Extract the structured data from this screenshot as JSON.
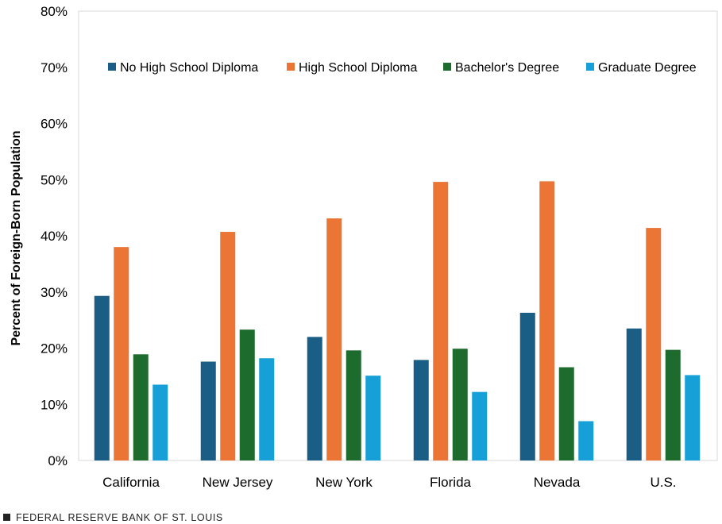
{
  "chart_data": {
    "type": "bar",
    "title": "",
    "xlabel": "",
    "ylabel": "Percent of Foreign-Born Population",
    "ylim": [
      0,
      80
    ],
    "yticks": [
      "0%",
      "10%",
      "20%",
      "30%",
      "40%",
      "50%",
      "60%",
      "70%",
      "80%"
    ],
    "grid": false,
    "legend_position": "top",
    "categories": [
      "California",
      "New Jersey",
      "New York",
      "Florida",
      "Nevada",
      "U.S."
    ],
    "series": [
      {
        "name": "No High School Diploma",
        "color": "#1a5e85",
        "values": [
          29.3,
          17.6,
          22.0,
          17.9,
          26.3,
          23.5
        ]
      },
      {
        "name": "High School Diploma",
        "color": "#ea7534",
        "values": [
          38.0,
          40.7,
          43.1,
          49.6,
          49.7,
          41.4
        ]
      },
      {
        "name": "Bachelor's Degree",
        "color": "#1e6b2e",
        "values": [
          18.9,
          23.3,
          19.6,
          19.9,
          16.6,
          19.7
        ]
      },
      {
        "name": "Graduate Degree",
        "color": "#179fd8",
        "values": [
          13.5,
          18.2,
          15.1,
          12.2,
          7.0,
          15.2
        ]
      }
    ]
  },
  "source": {
    "label": "FEDERAL RESERVE BANK OF ST. LOUIS",
    "icon": "square-icon"
  }
}
